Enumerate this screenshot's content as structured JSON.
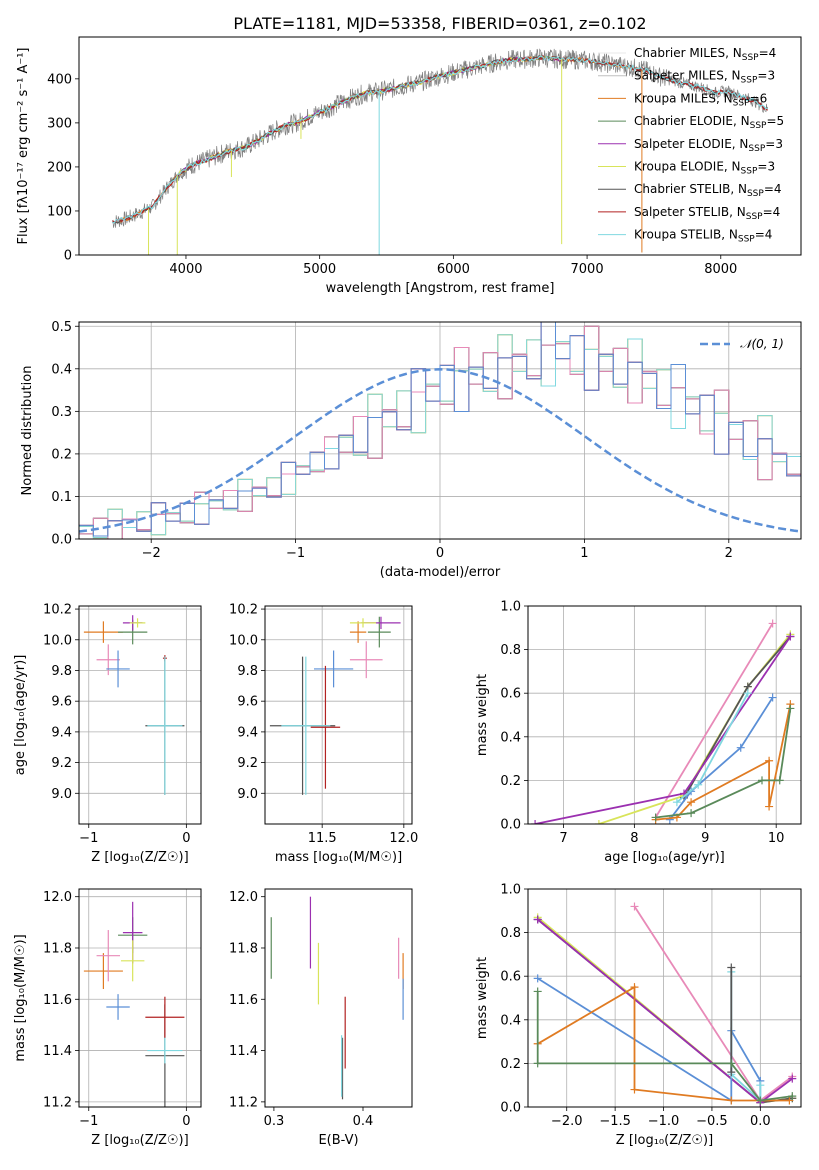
{
  "figure": {
    "title": "PLATE=1181, MJD=53358, FIBERID=0361, z=0.102"
  },
  "chart_data": [
    {
      "id": "spectrum",
      "type": "line",
      "xlabel": "wavelength [Angstrom, rest frame]",
      "ylabel": "Flux [fλ10⁻¹⁷ erg cm⁻² s⁻¹ A⁻¹]",
      "xlim": [
        3200,
        8600
      ],
      "ylim": [
        0,
        495
      ],
      "xticks": [
        4000,
        5000,
        6000,
        7000,
        8000
      ],
      "yticks": [
        0,
        100,
        200,
        300,
        400
      ],
      "grid": false,
      "legend_position": "top-right",
      "data_color": "#808080",
      "spectrum_points": {
        "x": [
          3450,
          3550,
          3650,
          3750,
          3850,
          3950,
          4050,
          4150,
          4250,
          4350,
          4450,
          4550,
          4650,
          4750,
          4850,
          4950,
          5050,
          5150,
          5250,
          5350,
          5450,
          5550,
          5650,
          5750,
          5850,
          5950,
          6050,
          6150,
          6250,
          6350,
          6450,
          6550,
          6650,
          6750,
          6850,
          6950,
          7050,
          7150,
          7250,
          7350,
          7450,
          7550,
          7650,
          7750,
          7850,
          7950,
          8050,
          8150,
          8250,
          8350
        ],
        "y": [
          75,
          82,
          95,
          110,
          150,
          185,
          205,
          215,
          228,
          238,
          245,
          262,
          280,
          295,
          302,
          318,
          330,
          345,
          358,
          368,
          372,
          378,
          386,
          392,
          402,
          410,
          418,
          425,
          432,
          440,
          444,
          445,
          448,
          446,
          444,
          443,
          440,
          435,
          430,
          425,
          418,
          405,
          395,
          388,
          380,
          368,
          372,
          360,
          350,
          330
        ]
      },
      "series": [
        {
          "name": "Chabrier MILES, N",
          "sub": "SSP",
          "suffix": "=4",
          "color": "#e8e8e8",
          "x_range": [
            3500,
            7400
          ]
        },
        {
          "name": "Salpeter MILES, N",
          "sub": "SSP",
          "suffix": "=3",
          "color": "#c0c0c0",
          "x_range": [
            3500,
            7400
          ]
        },
        {
          "name": "Kroupa MILES, N",
          "sub": "SSP",
          "suffix": "=6",
          "color": "#e07b22",
          "x_range": [
            3500,
            7400
          ]
        },
        {
          "name": "Chabrier ELODIE, N",
          "sub": "SSP",
          "suffix": "=5",
          "color": "#5a8a5a",
          "x_range": [
            3900,
            6800
          ]
        },
        {
          "name": "Salpeter ELODIE, N",
          "sub": "SSP",
          "suffix": "=3",
          "color": "#9b30b0",
          "x_range": [
            3900,
            6800
          ]
        },
        {
          "name": "Kroupa ELODIE, N",
          "sub": "SSP",
          "suffix": "=3",
          "color": "#d8e45a",
          "x_range": [
            3900,
            6800
          ]
        },
        {
          "name": "Chabrier STELIB, N",
          "sub": "SSP",
          "suffix": "=4",
          "color": "#555555",
          "x_range": [
            3450,
            8350
          ]
        },
        {
          "name": "Salpeter STELIB, N",
          "sub": "SSP",
          "suffix": "=4",
          "color": "#b22222",
          "x_range": [
            3450,
            8350
          ]
        },
        {
          "name": "Kroupa STELIB, N",
          "sub": "SSP",
          "suffix": "=4",
          "color": "#80d8e0",
          "x_range": [
            3450,
            8350
          ]
        }
      ],
      "absorption_lines": [
        {
          "x": 3720,
          "depth": 130
        },
        {
          "x": 3935,
          "depth": 190
        },
        {
          "x": 4340,
          "depth": 60
        },
        {
          "x": 4860,
          "depth": 40
        },
        {
          "x": 5445,
          "depth": 385
        },
        {
          "x": 6810,
          "depth": 420
        },
        {
          "x": 7410,
          "depth": 415
        }
      ]
    },
    {
      "id": "histogram",
      "type": "bar",
      "xlabel": "(data-model)/error",
      "ylabel": "Normed distribution",
      "xlim": [
        -2.5,
        2.5
      ],
      "ylim": [
        0,
        0.51
      ],
      "xticks": [
        -2,
        -1,
        0,
        1,
        2
      ],
      "yticks": [
        0.0,
        0.1,
        0.2,
        0.3,
        0.4,
        0.5
      ],
      "grid": true,
      "legend_position": "top-right",
      "normal_label": "𝒩(0, 1)",
      "normal_color": "#5b8fd6",
      "bin_width": 0.1,
      "bin_start": -2.5,
      "base_values": [
        0.02,
        0.025,
        0.03,
        0.035,
        0.04,
        0.045,
        0.05,
        0.06,
        0.07,
        0.08,
        0.09,
        0.1,
        0.11,
        0.12,
        0.14,
        0.16,
        0.18,
        0.2,
        0.22,
        0.24,
        0.26,
        0.28,
        0.3,
        0.32,
        0.34,
        0.36,
        0.37,
        0.38,
        0.39,
        0.4,
        0.41,
        0.42,
        0.43,
        0.44,
        0.43,
        0.42,
        0.41,
        0.4,
        0.39,
        0.37,
        0.35,
        0.33,
        0.31,
        0.29,
        0.27,
        0.25,
        0.23,
        0.21,
        0.19,
        0.17
      ],
      "extra_bins": [
        0.15,
        0.13,
        0.11,
        0.09,
        0.08,
        0.07,
        0.06,
        0.05,
        0.045,
        0.04,
        0.035,
        0.03,
        0.025,
        0.02
      ],
      "series_colors": [
        "#e07b22",
        "#5a8a5a",
        "#9b30b0",
        "#d8e45a",
        "#555555",
        "#b22222",
        "#80d8e0",
        "#e88ab8",
        "#5b8fd6"
      ]
    },
    {
      "id": "age-vs-Z",
      "type": "scatter",
      "xlabel": "Z [log₁₀(Z/Z☉)]",
      "ylabel": "age  [log₁₀(age/yr)]",
      "xlim": [
        -1.1,
        0.15
      ],
      "ylim": [
        8.8,
        10.22
      ],
      "xticks": [
        -1,
        0
      ],
      "yticks": [
        9.0,
        9.2,
        9.4,
        9.6,
        9.8,
        10.0,
        10.2
      ],
      "grid": true,
      "points": [
        {
          "x": -0.85,
          "y": 10.05,
          "xerr": 0.2,
          "yerr": 0.07,
          "color": "#e07b22"
        },
        {
          "x": -0.55,
          "y": 10.05,
          "xerr": 0.15,
          "yerr": 0.08,
          "color": "#5a8a5a"
        },
        {
          "x": -0.55,
          "y": 10.11,
          "xerr": 0.1,
          "yerr": 0.05,
          "color": "#9b30b0"
        },
        {
          "x": -0.5,
          "y": 10.11,
          "xerr": 0.08,
          "yerr": 0.03,
          "color": "#d8e45a"
        },
        {
          "x": -0.8,
          "y": 9.87,
          "xerr": 0.12,
          "yerr": 0.1,
          "color": "#e88ab8"
        },
        {
          "x": -0.7,
          "y": 9.81,
          "xerr": 0.12,
          "yerr": 0.12,
          "color": "#5b8fd6"
        },
        {
          "x": -0.22,
          "y": 9.44,
          "xerr": 0.2,
          "yerr": 0.45,
          "color": "#555555"
        },
        {
          "x": -0.22,
          "y": 9.88,
          "xerr": 0.02,
          "yerr": 0.02,
          "color": "#b22222"
        },
        {
          "x": -0.22,
          "y": 9.44,
          "xerr": 0.18,
          "yerr": 0.45,
          "color": "#80d8e0"
        }
      ]
    },
    {
      "id": "age-vs-mass",
      "type": "scatter",
      "xlabel": "mass [log₁₀(M/M☉)]",
      "ylabel": "",
      "xlim": [
        11.15,
        12.05
      ],
      "ylim": [
        8.8,
        10.22
      ],
      "xticks": [
        11.5,
        12.0
      ],
      "yticks": [
        9.0,
        9.2,
        9.4,
        9.6,
        9.8,
        10.0,
        10.2
      ],
      "grid": true,
      "points": [
        {
          "x": 11.72,
          "y": 10.05,
          "xerr": 0.05,
          "yerr": 0.07,
          "color": "#e07b22"
        },
        {
          "x": 11.85,
          "y": 10.05,
          "xerr": 0.07,
          "yerr": 0.1,
          "color": "#5a8a5a"
        },
        {
          "x": 11.86,
          "y": 10.11,
          "xerr": 0.12,
          "yerr": 0.04,
          "color": "#9b30b0"
        },
        {
          "x": 11.75,
          "y": 10.11,
          "xerr": 0.08,
          "yerr": 0.03,
          "color": "#d8e45a"
        },
        {
          "x": 11.77,
          "y": 9.87,
          "xerr": 0.1,
          "yerr": 0.12,
          "color": "#e88ab8"
        },
        {
          "x": 11.57,
          "y": 9.81,
          "xerr": 0.12,
          "yerr": 0.12,
          "color": "#5b8fd6"
        },
        {
          "x": 11.38,
          "y": 9.44,
          "xerr": 0.2,
          "yerr": 0.45,
          "color": "#555555"
        },
        {
          "x": 11.52,
          "y": 9.43,
          "xerr": 0.09,
          "yerr": 0.4,
          "color": "#b22222"
        },
        {
          "x": 11.4,
          "y": 9.44,
          "xerr": 0.15,
          "yerr": 0.45,
          "color": "#80d8e0"
        }
      ]
    },
    {
      "id": "weight-vs-age",
      "type": "line",
      "xlabel": "age  [log₁₀(age/yr)]",
      "ylabel": "mass weight",
      "xlim": [
        6.5,
        10.35
      ],
      "ylim": [
        0,
        1.0
      ],
      "xticks": [
        7,
        8,
        9,
        10
      ],
      "yticks": [
        0.0,
        0.2,
        0.4,
        0.6,
        0.8,
        1.0
      ],
      "grid": true,
      "series": [
        {
          "color": "#e88ab8",
          "x": [
            8.3,
            9.95
          ],
          "y": [
            0.03,
            0.92
          ]
        },
        {
          "color": "#d8e45a",
          "x": [
            7.5,
            8.7,
            9.6,
            10.2
          ],
          "y": [
            0.0,
            0.13,
            0.63,
            0.87
          ]
        },
        {
          "color": "#555555",
          "x": [
            8.7,
            9.6,
            10.2
          ],
          "y": [
            0.12,
            0.63,
            0.86
          ]
        },
        {
          "color": "#9b30b0",
          "x": [
            6.6,
            8.7,
            10.2
          ],
          "y": [
            0.0,
            0.14,
            0.86
          ]
        },
        {
          "color": "#5b8fd6",
          "x": [
            8.5,
            8.8,
            9.5,
            9.95
          ],
          "y": [
            0.02,
            0.15,
            0.35,
            0.58
          ]
        },
        {
          "color": "#80d8e0",
          "x": [
            8.6,
            8.9,
            9.6
          ],
          "y": [
            0.1,
            0.18,
            0.6
          ]
        },
        {
          "color": "#e07b22",
          "x": [
            8.3,
            8.6,
            8.8,
            9.9,
            9.9,
            10.2
          ],
          "y": [
            0.02,
            0.03,
            0.1,
            0.29,
            0.08,
            0.55
          ]
        },
        {
          "color": "#5a8a5a",
          "x": [
            8.3,
            8.8,
            9.8,
            10.05,
            10.2
          ],
          "y": [
            0.03,
            0.05,
            0.2,
            0.2,
            0.53
          ]
        }
      ]
    },
    {
      "id": "mass-vs-Z",
      "type": "scatter",
      "xlabel": "Z [log₁₀(Z/Z☉)]",
      "ylabel": "mass [log₁₀(M/M☉)]",
      "xlim": [
        -1.1,
        0.15
      ],
      "ylim": [
        11.18,
        12.03
      ],
      "xticks": [
        -1,
        0
      ],
      "yticks": [
        11.2,
        11.4,
        11.6,
        11.8,
        12.0
      ],
      "grid": true,
      "points": [
        {
          "x": -0.85,
          "y": 11.71,
          "xerr": 0.2,
          "yerr": 0.07,
          "color": "#e07b22"
        },
        {
          "x": -0.55,
          "y": 11.85,
          "xerr": 0.15,
          "yerr": 0.07,
          "color": "#5a8a5a"
        },
        {
          "x": -0.55,
          "y": 11.86,
          "xerr": 0.1,
          "yerr": 0.12,
          "color": "#9b30b0"
        },
        {
          "x": -0.55,
          "y": 11.75,
          "xerr": 0.12,
          "yerr": 0.08,
          "color": "#d8e45a"
        },
        {
          "x": -0.8,
          "y": 11.77,
          "xerr": 0.12,
          "yerr": 0.1,
          "color": "#e88ab8"
        },
        {
          "x": -0.7,
          "y": 11.57,
          "xerr": 0.12,
          "yerr": 0.05,
          "color": "#5b8fd6"
        },
        {
          "x": -0.22,
          "y": 11.38,
          "xerr": 0.2,
          "yerr": 0.2,
          "color": "#555555"
        },
        {
          "x": -0.22,
          "y": 11.53,
          "xerr": 0.2,
          "yerr": 0.08,
          "color": "#b22222"
        },
        {
          "x": -0.22,
          "y": 11.4,
          "xerr": 0.18,
          "yerr": 0.05,
          "color": "#80d8e0"
        }
      ]
    },
    {
      "id": "mass-vs-ebv",
      "type": "scatter",
      "xlabel": "E(B-V)",
      "ylabel": "",
      "xlim": [
        0.29,
        0.455
      ],
      "ylim": [
        11.18,
        12.03
      ],
      "xticks": [
        0.3,
        0.4
      ],
      "yticks": [
        11.2,
        11.4,
        11.6,
        11.8,
        12.0
      ],
      "grid": false,
      "points": [
        {
          "x": 0.445,
          "y": 11.71,
          "xerr": 0,
          "yerr": 0.07,
          "color": "#e07b22"
        },
        {
          "x": 0.297,
          "y": 11.8,
          "xerr": 0,
          "yerr": 0.12,
          "color": "#5a8a5a"
        },
        {
          "x": 0.341,
          "y": 11.86,
          "xerr": 0,
          "yerr": 0.14,
          "color": "#9b30b0"
        },
        {
          "x": 0.35,
          "y": 11.7,
          "xerr": 0,
          "yerr": 0.12,
          "color": "#d8e45a"
        },
        {
          "x": 0.44,
          "y": 11.76,
          "xerr": 0,
          "yerr": 0.08,
          "color": "#e88ab8"
        },
        {
          "x": 0.445,
          "y": 11.6,
          "xerr": 0,
          "yerr": 0.08,
          "color": "#5b8fd6"
        },
        {
          "x": 0.377,
          "y": 11.33,
          "xerr": 0,
          "yerr": 0.12,
          "color": "#555555"
        },
        {
          "x": 0.38,
          "y": 11.47,
          "xerr": 0,
          "yerr": 0.14,
          "color": "#b22222"
        },
        {
          "x": 0.376,
          "y": 11.34,
          "xerr": 0,
          "yerr": 0.12,
          "color": "#80d8e0"
        }
      ]
    },
    {
      "id": "weight-vs-Z",
      "type": "line",
      "xlabel": "Z [log₁₀(Z/Z☉)]",
      "ylabel": "mass weight",
      "xlim": [
        -2.4,
        0.42
      ],
      "ylim": [
        0,
        1.0
      ],
      "xticks": [
        -2.0,
        -1.5,
        -1.0,
        -0.5,
        0.0
      ],
      "yticks": [
        0.0,
        0.2,
        0.4,
        0.6,
        0.8,
        1.0
      ],
      "grid": true,
      "series": [
        {
          "color": "#e88ab8",
          "x": [
            -1.3,
            0.0,
            0.33
          ],
          "y": [
            0.92,
            0.03,
            0.14
          ]
        },
        {
          "color": "#d8e45a",
          "x": [
            -2.3,
            0.0,
            0.33
          ],
          "y": [
            0.87,
            0.02,
            0.04
          ]
        },
        {
          "color": "#555555",
          "x": [
            -2.3,
            0.0,
            0.33
          ],
          "y": [
            0.86,
            0.02,
            0.04
          ]
        },
        {
          "color": "#9b30b0",
          "x": [
            -2.3,
            0.0,
            0.33
          ],
          "y": [
            0.86,
            0.02,
            0.13
          ]
        },
        {
          "color": "#5b8fd6",
          "x": [
            -2.3,
            -0.3,
            -0.3,
            0.0,
            0.0
          ],
          "y": [
            0.59,
            0.03,
            0.35,
            0.12,
            0.03
          ]
        },
        {
          "color": "#80d8e0",
          "x": [
            -0.3,
            -0.3,
            0.0,
            0.0
          ],
          "y": [
            0.62,
            0.15,
            0.03,
            0.1
          ]
        },
        {
          "color": "#555555",
          "x": [
            -0.3,
            -0.3
          ],
          "y": [
            0.64,
            0.16
          ]
        },
        {
          "color": "#e07b22",
          "x": [
            -2.3,
            -1.3,
            -1.3,
            -0.3,
            0.3
          ],
          "y": [
            0.29,
            0.55,
            0.08,
            0.03,
            0.03
          ]
        },
        {
          "color": "#5a8a5a",
          "x": [
            -2.3,
            -2.3,
            -0.3,
            0.0,
            0.33
          ],
          "y": [
            0.53,
            0.2,
            0.2,
            0.03,
            0.05
          ]
        }
      ]
    }
  ]
}
